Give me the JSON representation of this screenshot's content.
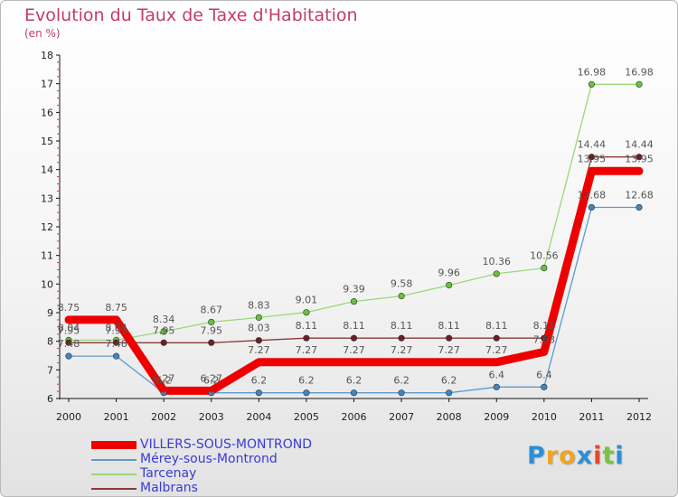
{
  "title": "Evolution du Taux de Taxe d'Habitation",
  "unit": "(en %)",
  "brand": {
    "letters": [
      "P",
      "r",
      "o",
      "x",
      "i",
      "t",
      "i"
    ],
    "colors": [
      "#2c8fd6",
      "#f2a320",
      "#f2a320",
      "#2c8fd6",
      "#e14a2c",
      "#7cc242",
      "#2c8fd6"
    ]
  },
  "chart_data": {
    "type": "line",
    "title": "Evolution du Taux de Taxe d'Habitation",
    "ylabel": "(en %)",
    "xlabel": "",
    "ylim": [
      6,
      18
    ],
    "yticks": [
      "6",
      "7",
      "8",
      "9",
      "10",
      "11",
      "12",
      "13",
      "14",
      "15",
      "16",
      "17",
      "18"
    ],
    "x": [
      "2000",
      "2001",
      "2002",
      "2003",
      "2004",
      "2005",
      "2006",
      "2007",
      "2008",
      "2009",
      "2010",
      "2011",
      "2012"
    ],
    "grid": false,
    "legend_position": "bottom-left",
    "series": [
      {
        "name": "VILLERS-SOUS-MONTROND",
        "color": "#ee0000",
        "bold": true,
        "values": [
          8.75,
          8.75,
          6.27,
          6.27,
          7.27,
          7.27,
          7.27,
          7.27,
          7.27,
          7.27,
          7.63,
          13.95,
          13.95
        ],
        "labels": [
          "8.75",
          "8.75",
          "6.27",
          "6.27",
          "7.27",
          "7.27",
          "7.27",
          "7.27",
          "7.27",
          "7.27",
          "7.63",
          "13.95",
          "13.95"
        ]
      },
      {
        "name": "Mérey-sous-Montrond",
        "color": "#5b9bd0",
        "point_color": "#3f86c2",
        "values": [
          7.48,
          7.48,
          6.2,
          6.2,
          6.2,
          6.2,
          6.2,
          6.2,
          6.2,
          6.4,
          6.4,
          12.68,
          12.68
        ],
        "labels": [
          "7.48",
          "7.48",
          "6.2",
          "6.2",
          "6.2",
          "6.2",
          "6.2",
          "6.2",
          "6.2",
          "6.4",
          "6.4",
          "12.68",
          "12.68"
        ]
      },
      {
        "name": "Tarcenay",
        "color": "#9ad77a",
        "point_color": "#66c23a",
        "values": [
          8.04,
          8.04,
          8.34,
          8.67,
          8.83,
          9.01,
          9.39,
          9.58,
          9.96,
          10.36,
          10.56,
          16.98,
          16.98
        ],
        "labels": [
          "8.04",
          "8.04",
          "8.34",
          "8.67",
          "8.83",
          "9.01",
          "9.39",
          "9.58",
          "9.96",
          "10.36",
          "10.56",
          "16.98",
          "16.98"
        ]
      },
      {
        "name": "Malbrans",
        "color": "#8b3a3a",
        "point_color": "#6b2020",
        "values": [
          7.95,
          7.95,
          7.95,
          7.95,
          8.03,
          8.11,
          8.11,
          8.11,
          8.11,
          8.11,
          8.11,
          14.44,
          14.44
        ],
        "labels": [
          "7.95",
          "7.95",
          "7.95",
          "7.95",
          "8.03",
          "8.11",
          "8.11",
          "8.11",
          "8.11",
          "8.11",
          "8.11",
          "14.44",
          "14.44"
        ]
      }
    ]
  }
}
